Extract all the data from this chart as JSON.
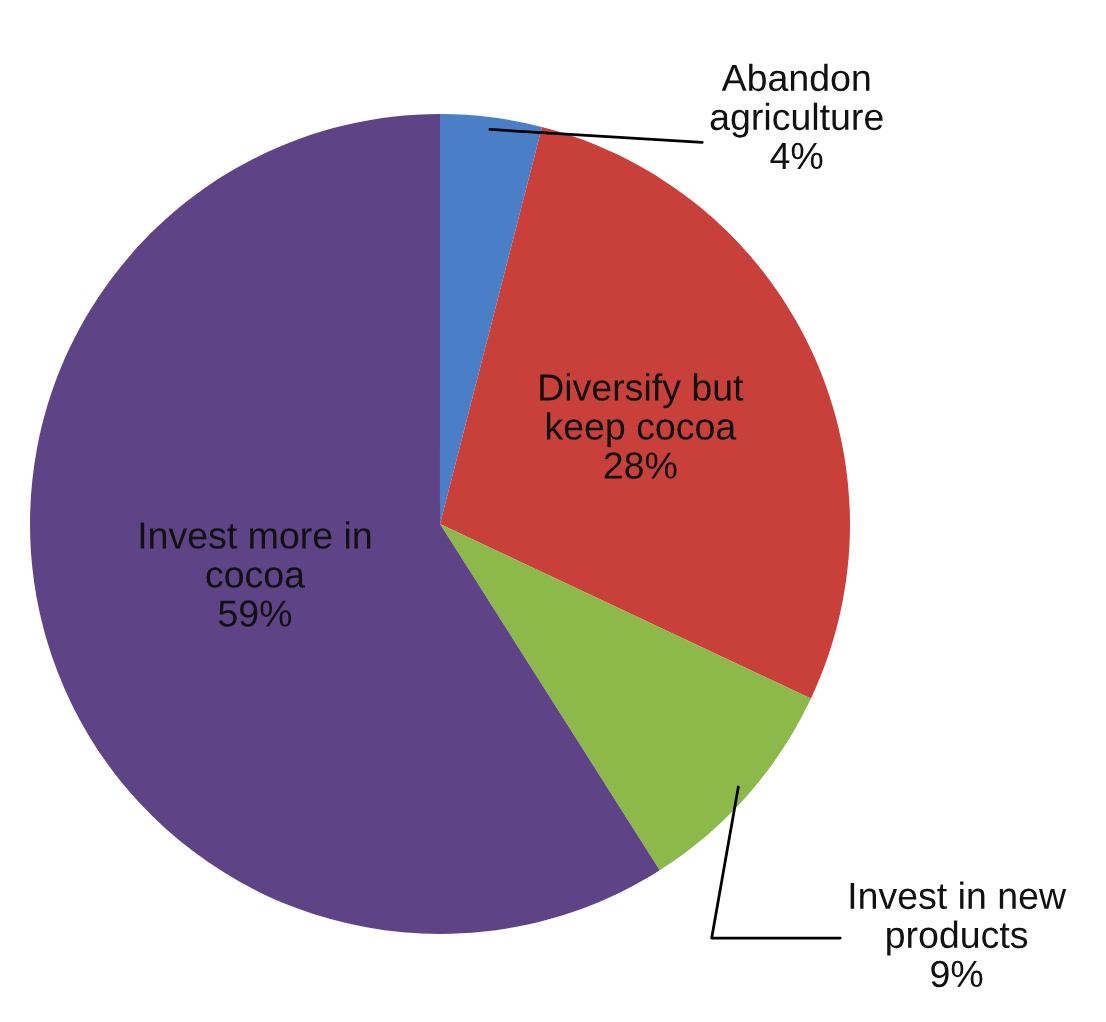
{
  "chart_data": {
    "type": "pie",
    "categories": [
      "Abandon agriculture",
      "Diversify but keep cocoa",
      "Invest in new products",
      "Invest more in cocoa"
    ],
    "values": [
      4,
      28,
      9,
      59
    ],
    "value_labels": [
      "4%",
      "28%",
      "9%",
      "59%"
    ],
    "colors": [
      "#4a7fc8",
      "#c9403a",
      "#8db84a",
      "#5e4487"
    ],
    "legend": false
  }
}
